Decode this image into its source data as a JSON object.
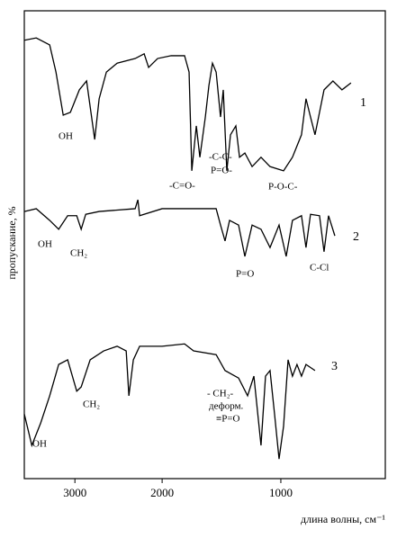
{
  "chart_data": {
    "type": "line",
    "xlabel": "длина волны, см⁻¹",
    "ylabel": "пропускание, %",
    "xlim": [
      3580,
      120
    ],
    "xscale_break": 2000,
    "xticks": [
      3000,
      2000,
      1000
    ],
    "ylim": [
      0,
      100
    ],
    "color": "#000000",
    "series": [
      {
        "name": "1",
        "x": [
          3580,
          3443,
          3289,
          3217,
          3134,
          3052,
          2949,
          2866,
          2773,
          2722,
          2639,
          2516,
          2309,
          2206,
          2155,
          2052,
          1924,
          1811,
          1773,
          1750,
          1712,
          1682,
          1636,
          1606,
          1576,
          1545,
          1508,
          1485,
          1455,
          1424,
          1379,
          1348,
          1303,
          1242,
          1167,
          1091,
          977,
          902,
          826,
          788,
          750,
          712,
          636,
          561,
          485,
          409
        ],
        "values": [
          93.7,
          94.2,
          92.7,
          86.9,
          77.7,
          78.3,
          83.1,
          85.0,
          72.5,
          81.2,
          86.9,
          88.8,
          89.8,
          90.8,
          87.9,
          89.8,
          90.4,
          90.4,
          86.9,
          65.8,
          75.4,
          68.7,
          77.3,
          84.0,
          88.8,
          86.9,
          77.3,
          83.1,
          65.8,
          73.5,
          75.4,
          68.7,
          69.6,
          66.7,
          68.7,
          66.7,
          65.8,
          68.7,
          73.5,
          81.2,
          77.3,
          73.5,
          83.1,
          85.0,
          83.1,
          84.6
        ]
      },
      {
        "name": "2",
        "x": [
          3580,
          3443,
          3289,
          3186,
          3083,
          2979,
          2928,
          2876,
          2722,
          2309,
          2278,
          2258,
          2000,
          1545,
          1508,
          1470,
          1432,
          1356,
          1303,
          1242,
          1167,
          1091,
          1015,
          955,
          902,
          826,
          788,
          750,
          674,
          636,
          598,
          545
        ],
        "values": [
          57.1,
          57.7,
          55.2,
          53.3,
          56.2,
          56.2,
          53.3,
          56.5,
          57.1,
          57.7,
          59.6,
          56.2,
          57.7,
          57.7,
          54.2,
          50.8,
          55.2,
          54.2,
          47.5,
          54.2,
          53.3,
          49.4,
          54.2,
          47.5,
          55.2,
          56.2,
          49.4,
          56.5,
          56.2,
          48.5,
          56.2,
          51.9
        ]
      },
      {
        "name": "3",
        "x": [
          3580,
          3494,
          3392,
          3289,
          3186,
          3083,
          2979,
          2928,
          2825,
          2670,
          2516,
          2412,
          2381,
          2330,
          2258,
          2000,
          1811,
          1735,
          1545,
          1470,
          1356,
          1280,
          1227,
          1167,
          1129,
          1091,
          1053,
          1015,
          977,
          939,
          902,
          864,
          826,
          788,
          712
        ],
        "values": [
          13.8,
          7.1,
          11.9,
          17.7,
          24.4,
          25.4,
          18.7,
          19.6,
          25.4,
          27.3,
          28.3,
          27.3,
          17.7,
          25.4,
          28.3,
          28.3,
          28.8,
          27.3,
          26.5,
          23.1,
          21.5,
          17.7,
          21.9,
          7.1,
          21.9,
          23.1,
          13.8,
          4.2,
          11.2,
          25.4,
          21.9,
          24.4,
          21.9,
          24.4,
          23.1
        ]
      }
    ],
    "annotations": [
      "OH",
      "-C=O-",
      "-C-C-",
      "P=O-",
      "P-O-C-",
      "OH",
      "CH₂",
      "P=O",
      "C-Cl",
      "OH",
      "CH₂",
      "- CH₂-",
      "деформ.",
      "≡P=O"
    ]
  }
}
